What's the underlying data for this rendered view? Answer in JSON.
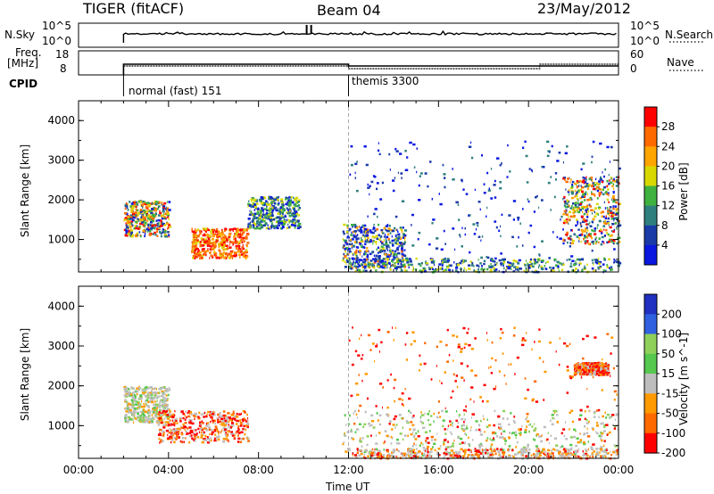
{
  "header": {
    "station": "TIGER (fitACF)",
    "beam": "Beam 04",
    "date": "23/May/2012"
  },
  "strip_labels": {
    "nsky": "N.Sky",
    "nsky_ticks": [
      "10^5",
      "10^0"
    ],
    "nsearch": "N.Search",
    "nsearch_ticks": [
      "10^5",
      "10^0"
    ],
    "freq": "Freq.",
    "freq_unit": "[MHz]",
    "freq_ticks": [
      "18",
      "8"
    ],
    "nave": "Nave",
    "nave_ticks": [
      "60",
      "0"
    ],
    "cpid": "CPID"
  },
  "cpid_segments": [
    {
      "label": "normal (fast) 151",
      "start_hour": 2.0
    },
    {
      "label": "themis 3300",
      "start_hour": 12.0
    }
  ],
  "chart_data": [
    {
      "type": "heatmap",
      "title": "",
      "quantity": "Power",
      "colorbar_label": "Power [dB]",
      "colorbar_ticks": [
        "28",
        "24",
        "20",
        "16",
        "12",
        "8",
        "4"
      ],
      "colorbar_colors": [
        "#ff0000",
        "#ff6a00",
        "#ffa500",
        "#d8d800",
        "#3fb13f",
        "#2f7f7f",
        "#1a3aa8",
        "#0a18e0"
      ],
      "ylabel": "Slant Range [km]",
      "yticks": [
        "4000",
        "3000",
        "2000",
        "1000"
      ],
      "ylim": [
        180,
        4500
      ],
      "xlim": [
        0,
        24
      ],
      "xlabel": "",
      "xticks": [],
      "scatter_regions": [
        {
          "t0": 2.0,
          "t1": 4.0,
          "r0": 1100,
          "r1": 2000,
          "level": "med-high"
        },
        {
          "t0": 5.0,
          "t1": 7.5,
          "r0": 550,
          "r1": 1300,
          "level": "high"
        },
        {
          "t0": 7.5,
          "t1": 9.8,
          "r0": 1300,
          "r1": 2100,
          "level": "medium"
        },
        {
          "t0": 11.7,
          "t1": 14.5,
          "r0": 300,
          "r1": 1400,
          "level": "low-high"
        },
        {
          "t0": 12.0,
          "t1": 24.0,
          "r0": 200,
          "r1": 550,
          "level": "low"
        },
        {
          "t0": 12.0,
          "t1": 24.0,
          "r0": 550,
          "r1": 3500,
          "level": "sparse"
        },
        {
          "t0": 21.5,
          "t1": 24.0,
          "r0": 900,
          "r1": 2600,
          "level": "medium-high"
        }
      ]
    },
    {
      "type": "heatmap",
      "title": "",
      "quantity": "Velocity",
      "colorbar_label": "Velocity [m s^-1]",
      "colorbar_ticks": [
        "200",
        "100",
        "50",
        "15",
        "-15",
        "-50",
        "-100",
        "-200"
      ],
      "colorbar_colors": [
        "#2030c0",
        "#3060e0",
        "#8fd05a",
        "#55c850",
        "#bebebe",
        "#ff9a00",
        "#ff6a00",
        "#ff0000"
      ],
      "ylabel": "Slant Range [km]",
      "yticks": [
        "4000",
        "3000",
        "2000",
        "1000"
      ],
      "ylim": [
        180,
        4500
      ],
      "xlim": [
        0,
        24
      ],
      "xlabel": "Time UT",
      "xticks": [
        "00:00",
        "04:00",
        "08:00",
        "12:00",
        "16:00",
        "20:00",
        "00:00"
      ],
      "scatter_regions": [
        {
          "t0": 2.0,
          "t1": 4.0,
          "r0": 1100,
          "r1": 2000,
          "level": "grey"
        },
        {
          "t0": 3.5,
          "t1": 7.5,
          "r0": 600,
          "r1": 1400,
          "level": "negative"
        },
        {
          "t0": 11.7,
          "t1": 24.0,
          "r0": 250,
          "r1": 1400,
          "level": "grey"
        },
        {
          "t0": 12.0,
          "t1": 24.0,
          "r0": 200,
          "r1": 450,
          "level": "negative-low"
        },
        {
          "t0": 12.0,
          "t1": 24.0,
          "r0": 550,
          "r1": 3500,
          "level": "sparse"
        },
        {
          "t0": 22.0,
          "t1": 23.5,
          "r0": 2300,
          "r1": 2600,
          "level": "negative"
        }
      ]
    }
  ]
}
